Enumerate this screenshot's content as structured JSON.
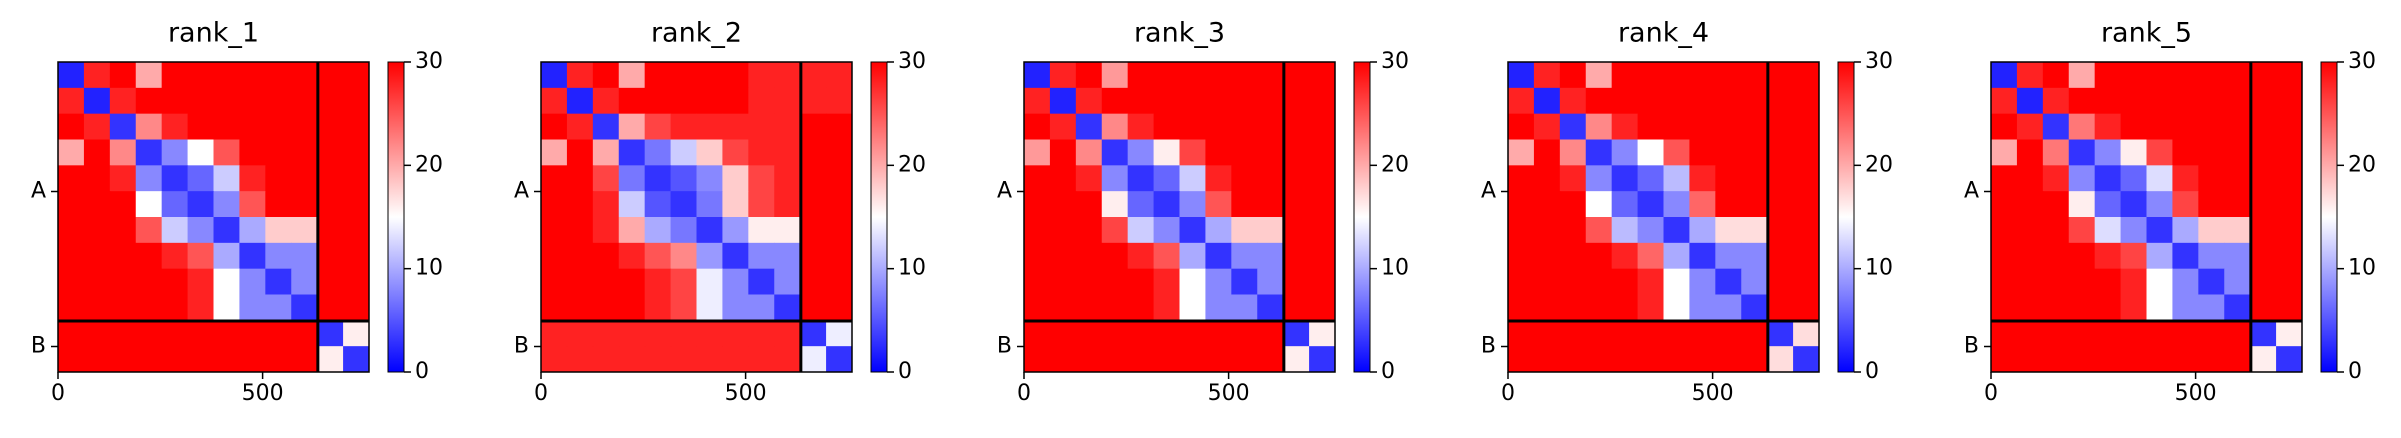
{
  "chart_data": [
    {
      "type": "heatmap",
      "title": "rank_1",
      "xlim": [
        0,
        760
      ],
      "xticks": [
        0,
        500
      ],
      "ylim": [
        0,
        760
      ],
      "y_categories": [
        "A",
        "B"
      ],
      "chain_lines": [
        635
      ],
      "colorbar": {
        "lim": [
          0,
          30
        ],
        "ticks": [
          0,
          10,
          20,
          30
        ],
        "colors": [
          "#0000ff",
          "#ffffff",
          "#ff0000"
        ]
      },
      "values": [
        [
          2,
          28,
          30,
          20,
          30,
          30,
          30,
          30,
          30,
          30,
          30,
          30
        ],
        [
          28,
          2,
          28,
          30,
          30,
          30,
          30,
          30,
          30,
          30,
          30,
          30
        ],
        [
          30,
          28,
          3,
          22,
          28,
          30,
          30,
          30,
          30,
          30,
          30,
          30
        ],
        [
          20,
          30,
          22,
          3,
          8,
          15,
          25,
          30,
          30,
          30,
          30,
          30
        ],
        [
          30,
          30,
          28,
          8,
          3,
          6,
          12,
          28,
          30,
          30,
          30,
          30
        ],
        [
          30,
          30,
          30,
          15,
          6,
          3,
          8,
          25,
          30,
          30,
          30,
          30
        ],
        [
          30,
          30,
          30,
          25,
          12,
          8,
          3,
          10,
          18,
          18,
          30,
          30
        ],
        [
          30,
          30,
          30,
          30,
          28,
          25,
          10,
          3,
          8,
          8,
          30,
          30
        ],
        [
          30,
          30,
          30,
          30,
          30,
          28,
          15,
          8,
          3,
          8,
          30,
          30
        ],
        [
          30,
          30,
          30,
          30,
          30,
          28,
          15,
          8,
          8,
          3,
          30,
          30
        ],
        [
          30,
          30,
          30,
          30,
          30,
          30,
          30,
          30,
          30,
          30,
          3,
          16
        ],
        [
          30,
          30,
          30,
          30,
          30,
          30,
          30,
          30,
          30,
          30,
          16,
          3
        ]
      ]
    },
    {
      "type": "heatmap",
      "title": "rank_2",
      "xlim": [
        0,
        760
      ],
      "xticks": [
        0,
        500
      ],
      "ylim": [
        0,
        760
      ],
      "y_categories": [
        "A",
        "B"
      ],
      "chain_lines": [
        635
      ],
      "colorbar": {
        "lim": [
          0,
          30
        ],
        "ticks": [
          0,
          10,
          20,
          30
        ],
        "colors": [
          "#0000ff",
          "#ffffff",
          "#ff0000"
        ]
      },
      "values": [
        [
          2,
          28,
          30,
          20,
          30,
          30,
          30,
          30,
          28,
          28,
          28,
          28
        ],
        [
          28,
          2,
          28,
          30,
          30,
          30,
          30,
          30,
          28,
          28,
          28,
          28
        ],
        [
          30,
          28,
          3,
          20,
          26,
          28,
          28,
          28,
          28,
          28,
          30,
          30
        ],
        [
          20,
          30,
          20,
          3,
          7,
          12,
          18,
          26,
          28,
          28,
          30,
          30
        ],
        [
          30,
          30,
          26,
          7,
          3,
          5,
          8,
          18,
          26,
          28,
          30,
          30
        ],
        [
          30,
          30,
          28,
          12,
          5,
          3,
          7,
          18,
          26,
          28,
          30,
          30
        ],
        [
          30,
          30,
          28,
          20,
          10,
          7,
          3,
          9,
          16,
          16,
          30,
          30
        ],
        [
          30,
          30,
          30,
          28,
          25,
          22,
          9,
          3,
          8,
          8,
          30,
          30
        ],
        [
          30,
          30,
          30,
          30,
          28,
          26,
          14,
          8,
          3,
          8,
          30,
          30
        ],
        [
          30,
          30,
          30,
          30,
          28,
          26,
          14,
          8,
          8,
          3,
          30,
          30
        ],
        [
          28,
          28,
          28,
          28,
          28,
          28,
          28,
          28,
          28,
          28,
          3,
          14
        ],
        [
          28,
          28,
          28,
          28,
          28,
          28,
          28,
          28,
          28,
          28,
          14,
          3
        ]
      ]
    },
    {
      "type": "heatmap",
      "title": "rank_3",
      "xlim": [
        0,
        760
      ],
      "xticks": [
        0,
        500
      ],
      "ylim": [
        0,
        760
      ],
      "y_categories": [
        "A",
        "B"
      ],
      "chain_lines": [
        635
      ],
      "colorbar": {
        "lim": [
          0,
          30
        ],
        "ticks": [
          0,
          10,
          20,
          30
        ],
        "colors": [
          "#0000ff",
          "#ffffff",
          "#ff0000"
        ]
      },
      "values": [
        [
          2,
          28,
          30,
          21,
          30,
          30,
          30,
          30,
          30,
          30,
          30,
          30
        ],
        [
          28,
          2,
          28,
          30,
          30,
          30,
          30,
          30,
          30,
          30,
          30,
          30
        ],
        [
          30,
          28,
          3,
          22,
          28,
          30,
          30,
          30,
          30,
          30,
          30,
          30
        ],
        [
          21,
          30,
          22,
          3,
          8,
          16,
          26,
          30,
          30,
          30,
          30,
          30
        ],
        [
          30,
          30,
          28,
          8,
          3,
          6,
          12,
          28,
          30,
          30,
          30,
          30
        ],
        [
          30,
          30,
          30,
          16,
          6,
          3,
          8,
          25,
          30,
          30,
          30,
          30
        ],
        [
          30,
          30,
          30,
          26,
          12,
          8,
          3,
          10,
          18,
          18,
          30,
          30
        ],
        [
          30,
          30,
          30,
          30,
          28,
          25,
          10,
          3,
          8,
          8,
          30,
          30
        ],
        [
          30,
          30,
          30,
          30,
          30,
          28,
          15,
          8,
          3,
          8,
          30,
          30
        ],
        [
          30,
          30,
          30,
          30,
          30,
          28,
          15,
          8,
          8,
          3,
          30,
          30
        ],
        [
          30,
          30,
          30,
          30,
          30,
          30,
          30,
          30,
          30,
          30,
          3,
          16
        ],
        [
          30,
          30,
          30,
          30,
          30,
          30,
          30,
          30,
          30,
          30,
          16,
          3
        ]
      ]
    },
    {
      "type": "heatmap",
      "title": "rank_4",
      "xlim": [
        0,
        760
      ],
      "xticks": [
        0,
        500
      ],
      "ylim": [
        0,
        760
      ],
      "y_categories": [
        "A",
        "B"
      ],
      "chain_lines": [
        635
      ],
      "colorbar": {
        "lim": [
          0,
          30
        ],
        "ticks": [
          0,
          10,
          20,
          30
        ],
        "colors": [
          "#0000ff",
          "#ffffff",
          "#ff0000"
        ]
      },
      "values": [
        [
          2,
          28,
          30,
          20,
          30,
          30,
          30,
          30,
          30,
          30,
          30,
          30
        ],
        [
          28,
          2,
          28,
          30,
          30,
          30,
          30,
          30,
          30,
          30,
          30,
          30
        ],
        [
          30,
          28,
          3,
          22,
          28,
          30,
          30,
          30,
          30,
          30,
          30,
          30
        ],
        [
          20,
          30,
          22,
          3,
          8,
          15,
          25,
          30,
          30,
          30,
          30,
          30
        ],
        [
          30,
          30,
          28,
          8,
          3,
          6,
          11,
          28,
          30,
          30,
          30,
          30
        ],
        [
          30,
          30,
          30,
          15,
          6,
          3,
          8,
          24,
          30,
          30,
          30,
          30
        ],
        [
          30,
          30,
          30,
          25,
          11,
          8,
          3,
          10,
          17,
          17,
          30,
          30
        ],
        [
          30,
          30,
          30,
          30,
          28,
          24,
          10,
          3,
          8,
          8,
          30,
          30
        ],
        [
          30,
          30,
          30,
          30,
          30,
          28,
          15,
          8,
          3,
          8,
          30,
          30
        ],
        [
          30,
          30,
          30,
          30,
          30,
          28,
          15,
          8,
          8,
          3,
          30,
          30
        ],
        [
          30,
          30,
          30,
          30,
          30,
          30,
          30,
          30,
          30,
          30,
          3,
          17
        ],
        [
          30,
          30,
          30,
          30,
          30,
          30,
          30,
          30,
          30,
          30,
          17,
          3
        ]
      ]
    },
    {
      "type": "heatmap",
      "title": "rank_5",
      "xlim": [
        0,
        760
      ],
      "xticks": [
        0,
        500
      ],
      "ylim": [
        0,
        760
      ],
      "y_categories": [
        "A",
        "B"
      ],
      "chain_lines": [
        635
      ],
      "colorbar": {
        "lim": [
          0,
          30
        ],
        "ticks": [
          0,
          10,
          20,
          30
        ],
        "colors": [
          "#0000ff",
          "#ffffff",
          "#ff0000"
        ]
      },
      "values": [
        [
          2,
          28,
          30,
          20,
          30,
          30,
          30,
          30,
          30,
          30,
          30,
          30
        ],
        [
          28,
          2,
          28,
          30,
          30,
          30,
          30,
          30,
          30,
          30,
          30,
          30
        ],
        [
          30,
          28,
          3,
          23,
          28,
          30,
          30,
          30,
          30,
          30,
          30,
          30
        ],
        [
          20,
          30,
          23,
          3,
          8,
          16,
          26,
          30,
          30,
          30,
          30,
          30
        ],
        [
          30,
          30,
          28,
          8,
          3,
          6,
          13,
          28,
          30,
          30,
          30,
          30
        ],
        [
          30,
          30,
          30,
          16,
          6,
          3,
          8,
          26,
          30,
          30,
          30,
          30
        ],
        [
          30,
          30,
          30,
          26,
          13,
          8,
          3,
          10,
          18,
          18,
          30,
          30
        ],
        [
          30,
          30,
          30,
          30,
          28,
          26,
          10,
          3,
          8,
          8,
          30,
          30
        ],
        [
          30,
          30,
          30,
          30,
          30,
          28,
          15,
          8,
          3,
          8,
          30,
          30
        ],
        [
          30,
          30,
          30,
          30,
          30,
          28,
          15,
          8,
          8,
          3,
          30,
          30
        ],
        [
          30,
          30,
          30,
          30,
          30,
          30,
          30,
          30,
          30,
          30,
          3,
          16
        ],
        [
          30,
          30,
          30,
          30,
          30,
          30,
          30,
          30,
          30,
          30,
          16,
          3
        ]
      ]
    }
  ]
}
